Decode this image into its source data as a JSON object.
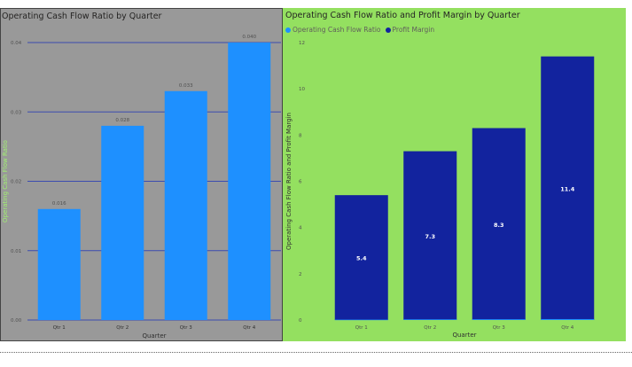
{
  "chart_data": [
    {
      "type": "bar",
      "title": "Operating Cash Flow Ratio by Quarter",
      "xlabel": "Quarter",
      "ylabel": "Operating Cash Flow Ratio",
      "categories": [
        "Qtr 1",
        "Qtr 2",
        "Qtr 3",
        "Qtr 4"
      ],
      "values": [
        0.016,
        0.028,
        0.033,
        0.04
      ],
      "data_labels": [
        "0.016",
        "0.028",
        "0.033",
        "0.040"
      ],
      "y_ticks": [
        "0.00",
        "0.01",
        "0.02",
        "0.03",
        "0.04"
      ],
      "ylim": [
        0,
        0.04
      ],
      "grid": true,
      "colors": {
        "bar": "#1e90ff",
        "background": "#999999",
        "gridline": "#3c4cb0",
        "ylabel": "#a0f070"
      }
    },
    {
      "type": "bar",
      "title": "Operating Cash Flow Ratio and Profit Margin by Quarter",
      "xlabel": "Quarter",
      "ylabel": "Operating Cash Flow Ratio and Profit Margin",
      "categories": [
        "Qtr 1",
        "Qtr 2",
        "Qtr 3",
        "Qtr 4"
      ],
      "legend": [
        {
          "name": "Operating Cash Flow Ratio",
          "color": "#1e90ff"
        },
        {
          "name": "Profit Margin",
          "color": "#12239e"
        }
      ],
      "series": [
        {
          "name": "Operating Cash Flow Ratio",
          "values": [
            0.016,
            0.028,
            0.033,
            0.04
          ],
          "color": "#1e90ff"
        },
        {
          "name": "Profit Margin",
          "values": [
            5.4,
            7.3,
            8.3,
            11.4
          ],
          "color": "#12239e",
          "data_labels": [
            "5.4",
            "7.3",
            "8.3",
            "11.4"
          ]
        }
      ],
      "y_ticks": [
        "0",
        "2",
        "4",
        "6",
        "8",
        "10",
        "12"
      ],
      "ylim": [
        0,
        12
      ],
      "grid": false,
      "legend_position": "top-left",
      "colors": {
        "background": "#94e060"
      }
    }
  ]
}
